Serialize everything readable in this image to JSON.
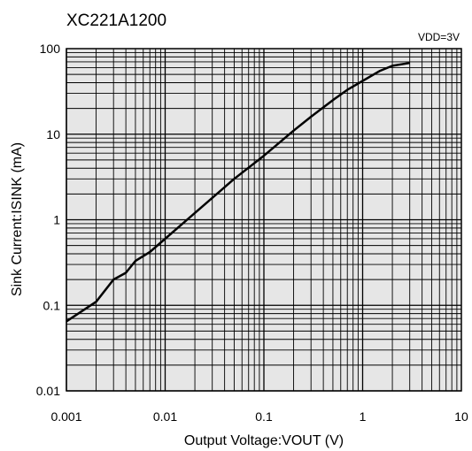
{
  "chart_data": {
    "type": "line",
    "title": "XC221A1200",
    "annotation": "VDD=3V",
    "xlabel": "Output Voltage:VOUT (V)",
    "ylabel": "Sink Current:ISINK (mA)",
    "x_scale": "log",
    "y_scale": "log",
    "xlim": [
      0.001,
      10
    ],
    "ylim": [
      0.01,
      100
    ],
    "x_ticks": [
      "0.001",
      "0.01",
      "0.1",
      "1",
      "10"
    ],
    "y_ticks": [
      "0.01",
      "0.1",
      "1",
      "10",
      "100"
    ],
    "grid": true,
    "series": [
      {
        "x": [
          0.001,
          0.002,
          0.003,
          0.004,
          0.005,
          0.007,
          0.01,
          0.02,
          0.05,
          0.1,
          0.2,
          0.3,
          0.5,
          0.7,
          1,
          1.5,
          2,
          3
        ],
        "y": [
          0.065,
          0.11,
          0.2,
          0.24,
          0.33,
          0.42,
          0.6,
          1.2,
          3.0,
          5.6,
          11,
          16,
          25,
          33,
          42,
          55,
          63,
          68
        ]
      }
    ]
  }
}
